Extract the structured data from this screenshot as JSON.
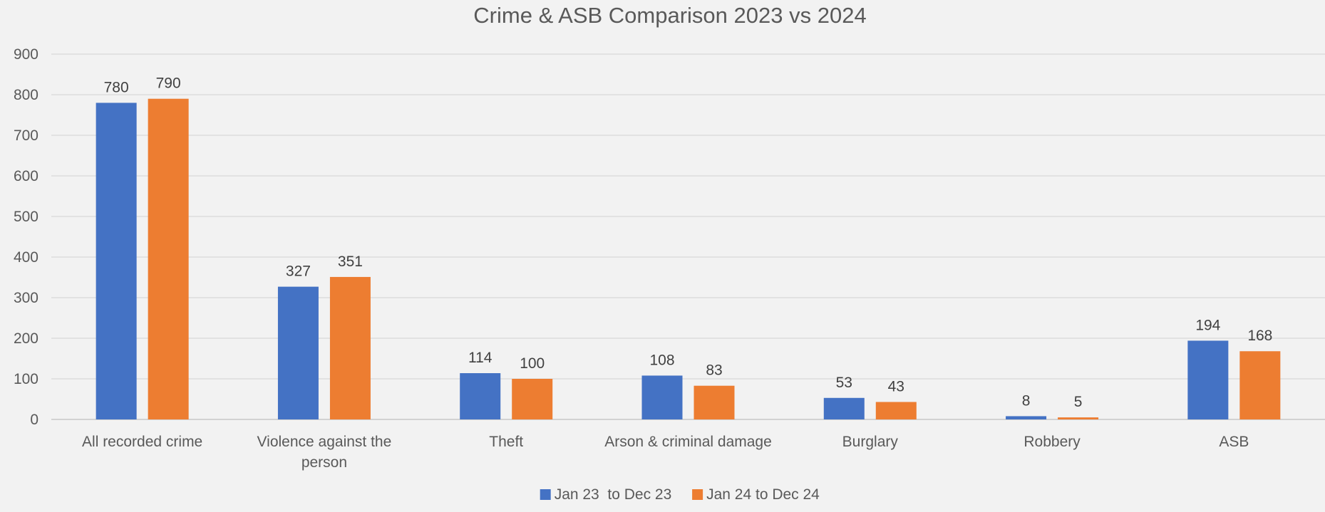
{
  "chart_data": {
    "type": "bar",
    "title": "Crime & ASB Comparison 2023 vs 2024",
    "xlabel": "",
    "ylabel": "",
    "ylim": [
      0,
      900
    ],
    "yticks": [
      0,
      100,
      200,
      300,
      400,
      500,
      600,
      700,
      800,
      900
    ],
    "grid": true,
    "legend_position": "bottom",
    "categories": [
      [
        "All recorded crime"
      ],
      [
        "Violence against the",
        "person"
      ],
      [
        "Theft"
      ],
      [
        "Arson & criminal damage"
      ],
      [
        "Burglary"
      ],
      [
        "Robbery"
      ],
      [
        "ASB"
      ]
    ],
    "series": [
      {
        "name": "Jan 23  to Dec 23",
        "color": "#4472c4",
        "values": [
          780,
          327,
          114,
          108,
          53,
          8,
          194
        ]
      },
      {
        "name": "Jan 24 to Dec 24",
        "color": "#ed7d31",
        "values": [
          790,
          351,
          100,
          83,
          43,
          5,
          168
        ]
      }
    ]
  }
}
